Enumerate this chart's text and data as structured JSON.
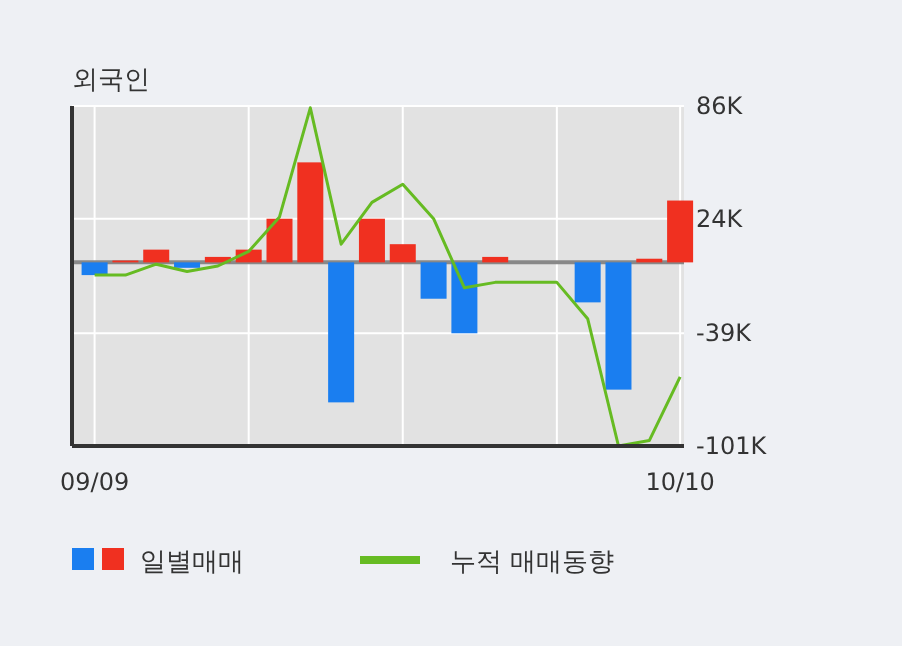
{
  "chart_data": {
    "type": "bar",
    "title": "외국인",
    "categories": [
      "09/09",
      null,
      null,
      null,
      null,
      null,
      null,
      null,
      null,
      null,
      null,
      null,
      null,
      null,
      null,
      null,
      null,
      null,
      null,
      "10/10"
    ],
    "series": [
      {
        "name": "일별매매",
        "type": "bar",
        "colors": [
          "#1a7ef0",
          "#f03020",
          "#f03020",
          "#1a7ef0",
          "#f03020",
          "#f03020",
          "#f03020",
          "#f03020",
          "#1a7ef0",
          "#f03020",
          "#f03020",
          "#1a7ef0",
          "#1a7ef0",
          "#f03020",
          "#f03020",
          "#f03020",
          "#1a7ef0",
          "#1a7ef0",
          "#f03020",
          "#f03020"
        ],
        "values": [
          -7,
          1,
          7,
          -3,
          3,
          7,
          24,
          55,
          -77,
          24,
          10,
          -20,
          -39,
          3,
          0,
          0,
          -22,
          -70,
          2,
          34
        ]
      },
      {
        "name": "누적 매매동향",
        "type": "line",
        "color": "#66bb22",
        "values": [
          -7,
          -7,
          -1,
          -5,
          -2,
          6,
          25,
          85,
          10,
          33,
          43,
          24,
          -14,
          -11,
          -11,
          -11,
          -31,
          -101,
          -98,
          -63
        ]
      }
    ],
    "ylim": [
      -101,
      86
    ],
    "yticks": [
      {
        "value": 86,
        "label": "86K"
      },
      {
        "value": 24,
        "label": "24K"
      },
      {
        "value": -39,
        "label": "-39K"
      },
      {
        "value": -101,
        "label": "-101K"
      }
    ],
    "ref_lines": [
      {
        "axis": "y",
        "value": 0,
        "label": null,
        "color": "#888888"
      }
    ],
    "grid": true,
    "legend": "bottom"
  }
}
